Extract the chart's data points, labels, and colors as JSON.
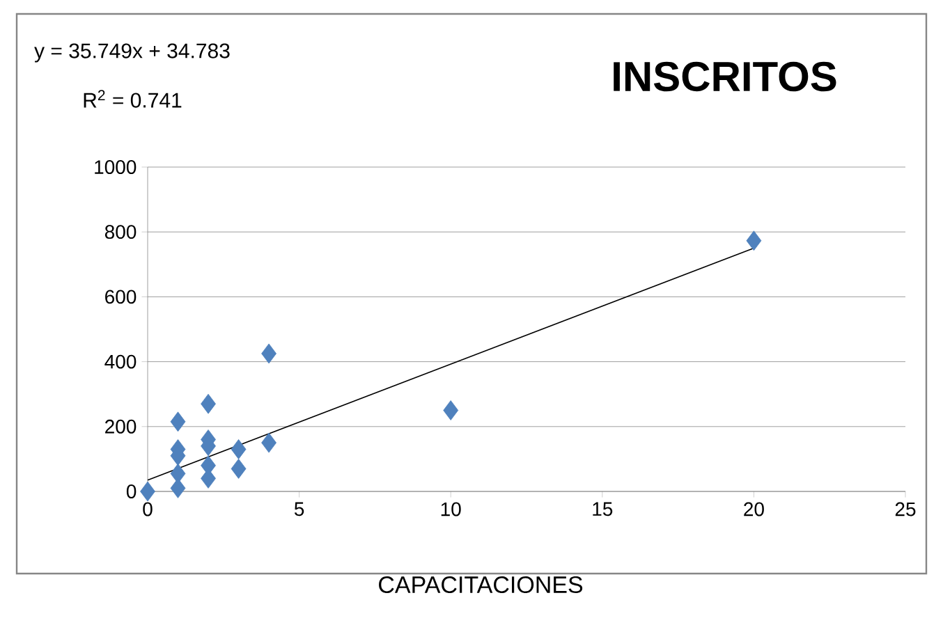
{
  "chart_data": {
    "type": "scatter",
    "title": "INSCRITOS",
    "xlabel": "CAPACITACIONES",
    "annotations": [
      "y = 35.749x + 34.783",
      "R$^{2}$ = 0.741"
    ],
    "xlim": [
      0,
      25
    ],
    "xticks": [
      0,
      5,
      10,
      15,
      20,
      25
    ],
    "ylim": [
      0,
      1000
    ],
    "yticks": [
      0,
      200,
      400,
      600,
      800,
      1000
    ],
    "grid": "y",
    "series": [
      {
        "marker": "diamond",
        "color": "#4f81bd",
        "x": [
          0,
          1,
          1,
          1,
          1,
          1,
          2,
          2,
          2,
          2,
          2,
          3,
          3,
          4,
          4,
          10,
          20
        ],
        "values": [
          0,
          215,
          130,
          110,
          55,
          10,
          270,
          160,
          140,
          80,
          40,
          130,
          70,
          150,
          425,
          250,
          773
        ]
      },
      {
        "type": "line",
        "marker": "none",
        "color": "#000000",
        "x": [
          0,
          20
        ],
        "values": [
          35,
          750
        ]
      }
    ]
  }
}
